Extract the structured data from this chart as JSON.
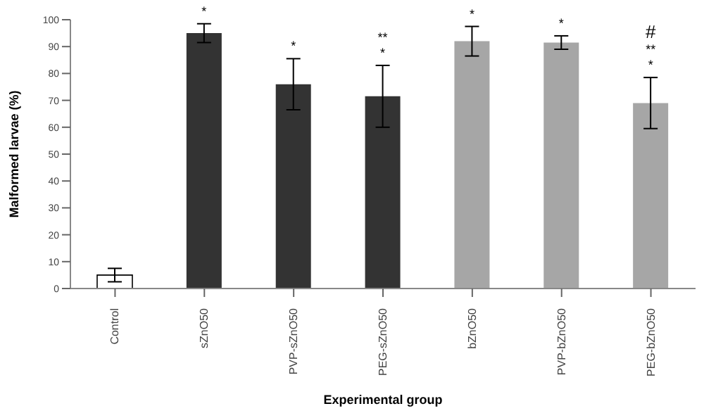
{
  "chart_data": {
    "type": "bar",
    "xlabel": "Experimental group",
    "ylabel": "Malformed larvae (%)",
    "categories": [
      "Control",
      "sZnO50",
      "PVP-sZnO50",
      "PEG-sZnO50",
      "bZnO50",
      "PVP-bZnO50",
      "PEG-bZnO50"
    ],
    "values": [
      5,
      95,
      76,
      71.5,
      92,
      91.5,
      69
    ],
    "errors": [
      2.5,
      3.5,
      9.5,
      11.5,
      5.5,
      2.5,
      9.5
    ],
    "colors": [
      "#ffffff",
      "#333333",
      "#333333",
      "#333333",
      "#a6a6a6",
      "#a6a6a6",
      "#a6a6a6"
    ],
    "value_labels": [
      null,
      "*",
      "*",
      "**\n*",
      "*",
      "*",
      "#\n**\n*"
    ],
    "ylim": [
      0,
      100
    ],
    "yticks": [
      0,
      10,
      20,
      30,
      40,
      50,
      60,
      70,
      80,
      90,
      100
    ],
    "grid": false,
    "legend": false
  }
}
